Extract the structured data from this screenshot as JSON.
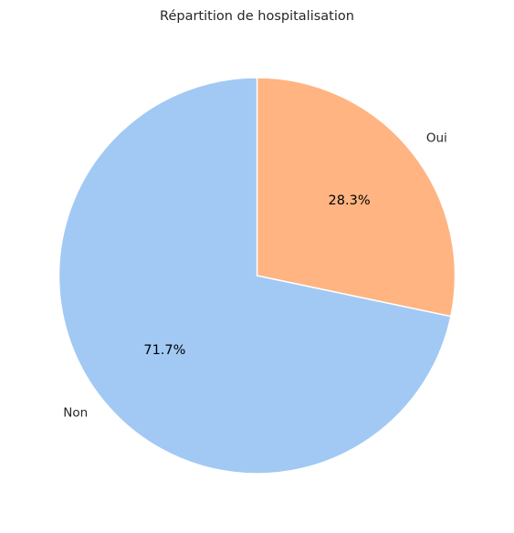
{
  "chart_data": {
    "type": "pie",
    "title": "Répartition de hospitalisation",
    "slices": [
      {
        "label": "Oui",
        "value": 28.3,
        "pct_label": "28.3%",
        "color": "#ffb482"
      },
      {
        "label": "Non",
        "value": 71.7,
        "pct_label": "71.7%",
        "color": "#a1c9f4"
      }
    ],
    "start_angle_deg": 90,
    "direction": "clockwise",
    "legend": "none"
  }
}
